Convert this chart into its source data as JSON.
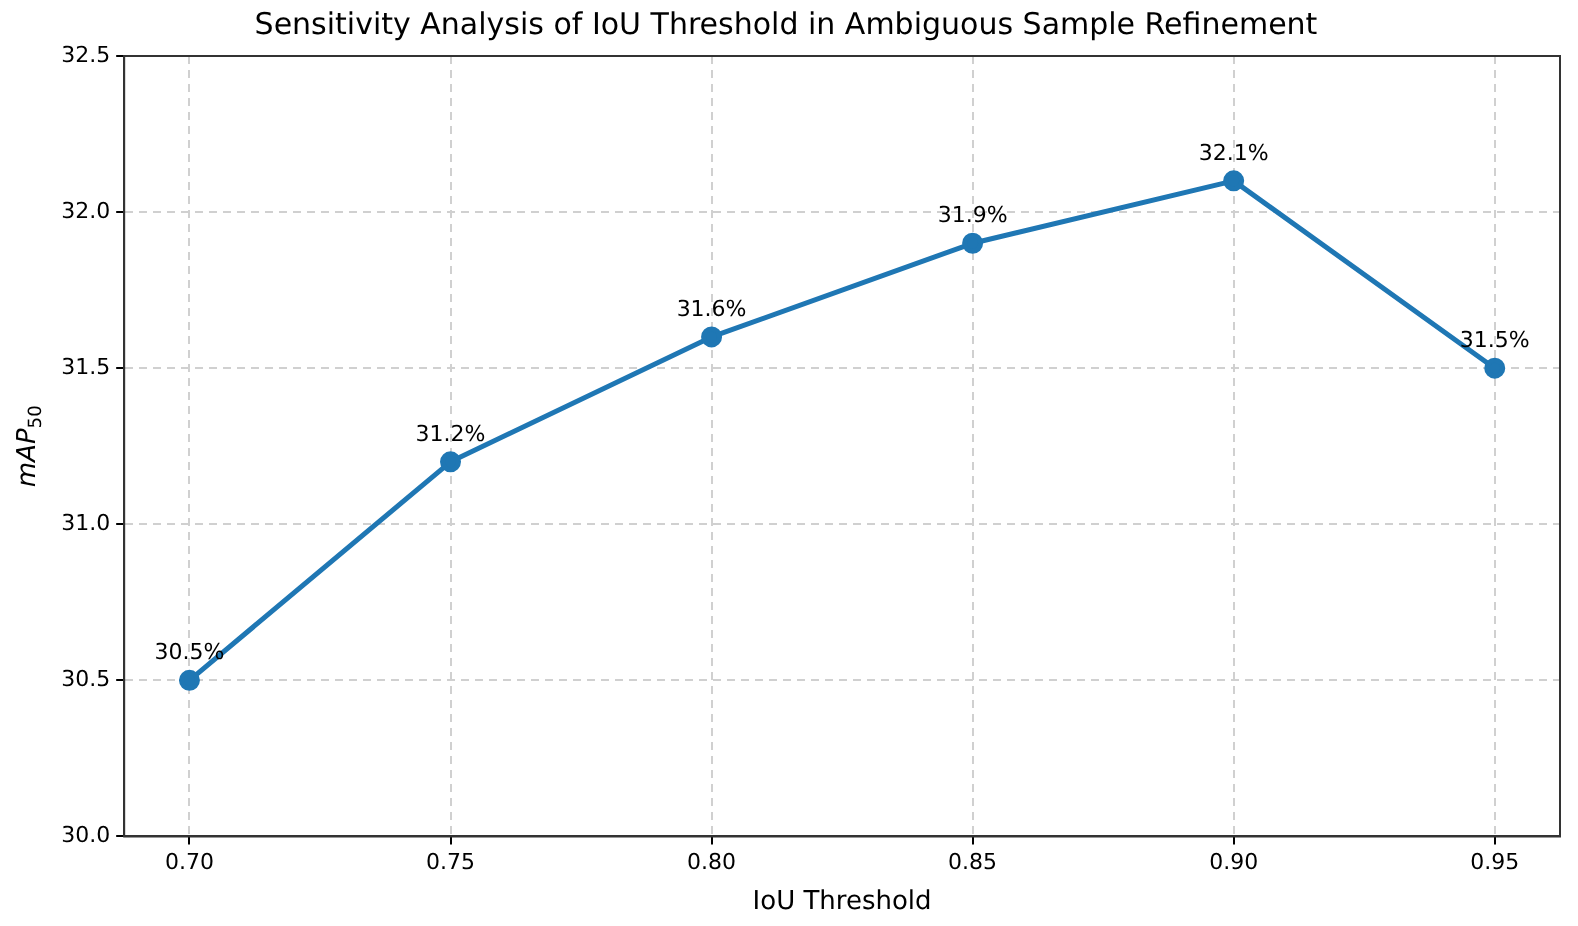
{
  "chart_data": {
    "type": "line",
    "title": "Sensitivity Analysis of IoU Threshold in Ambiguous Sample Refinement",
    "xlabel": "IoU Threshold",
    "ylabel": "mAP$_{50}$",
    "x": [
      0.7,
      0.75,
      0.8,
      0.85,
      0.9,
      0.95
    ],
    "series": [
      {
        "color": "#1f77b4",
        "values": [
          30.5,
          31.2,
          31.6,
          31.9,
          32.1,
          31.5
        ],
        "value_labels": [
          "30.5%",
          "31.2%",
          "31.6%",
          "31.9%",
          "32.1%",
          "31.5%"
        ]
      }
    ],
    "xlim": [
      0.6875,
      0.9625
    ],
    "xticks": [
      {
        "value": 0.7,
        "label": "0.70"
      },
      {
        "value": 0.75,
        "label": "0.75"
      },
      {
        "value": 0.8,
        "label": "0.80"
      },
      {
        "value": 0.85,
        "label": "0.85"
      },
      {
        "value": 0.9,
        "label": "0.90"
      },
      {
        "value": 0.95,
        "label": "0.95"
      }
    ],
    "ylim": [
      30,
      32.5
    ],
    "yticks": [
      {
        "value": 30,
        "label": "30.0"
      },
      30.5,
      {
        "value": 31,
        "label": "31.0"
      },
      31.5,
      {
        "value": 32,
        "label": "32.0"
      },
      32.5
    ],
    "grid": true,
    "marker": "circle",
    "line_style": "solid",
    "legend": false
  }
}
